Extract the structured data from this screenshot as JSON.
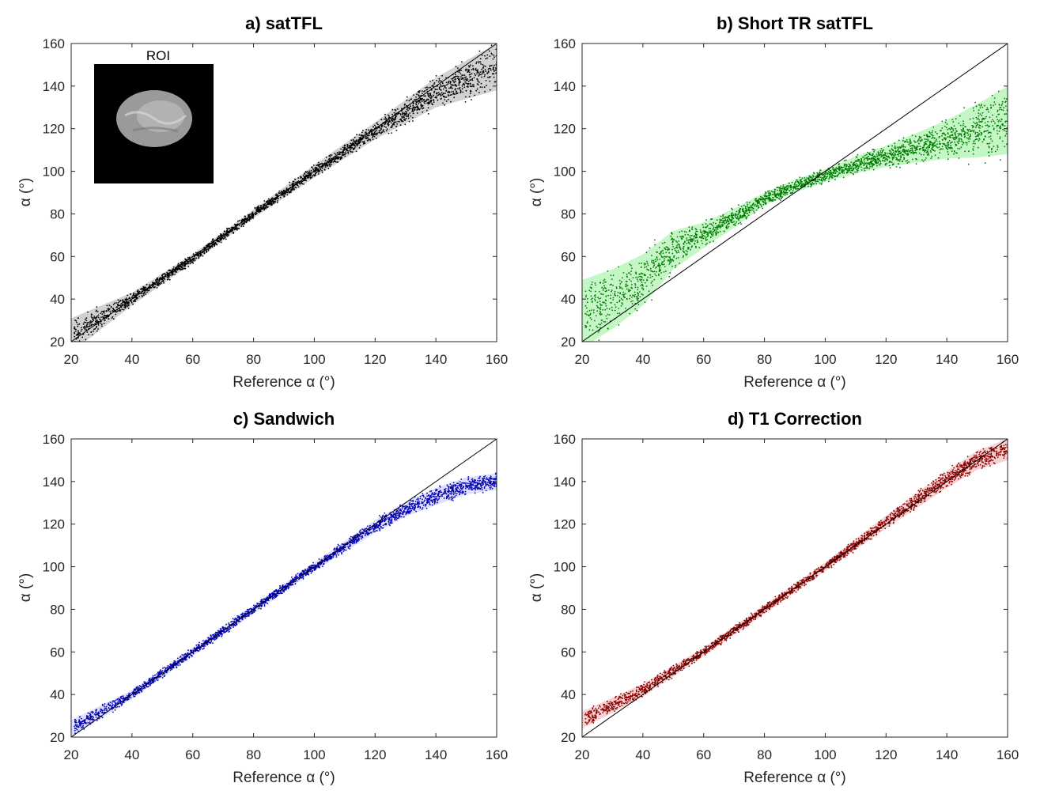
{
  "chart_data": [
    {
      "type": "scatter",
      "title": "a) satTFL",
      "xlabel": "Reference α (°)",
      "ylabel": "α (°)",
      "xlim": [
        20,
        160
      ],
      "ylim": [
        20,
        160
      ],
      "xticks": [
        20,
        40,
        60,
        80,
        100,
        120,
        140,
        160
      ],
      "yticks": [
        20,
        40,
        60,
        80,
        100,
        120,
        140,
        160
      ],
      "color": "#000000",
      "band_color": "#b3b3b3",
      "identity_line": true,
      "inset_label": "ROI",
      "trend": [
        [
          20,
          23
        ],
        [
          40,
          40
        ],
        [
          60,
          59
        ],
        [
          80,
          80
        ],
        [
          100,
          100
        ],
        [
          120,
          119
        ],
        [
          140,
          137
        ],
        [
          160,
          149
        ]
      ],
      "band_halfwidth": [
        [
          20,
          8
        ],
        [
          40,
          3
        ],
        [
          60,
          2
        ],
        [
          80,
          2
        ],
        [
          100,
          3
        ],
        [
          120,
          4
        ],
        [
          140,
          7
        ],
        [
          160,
          11
        ]
      ]
    },
    {
      "type": "scatter",
      "title": "b) Short TR satTFL",
      "xlabel": "Reference α (°)",
      "ylabel": "α (°)",
      "xlim": [
        20,
        160
      ],
      "ylim": [
        20,
        160
      ],
      "xticks": [
        20,
        40,
        60,
        80,
        100,
        120,
        140,
        160
      ],
      "yticks": [
        20,
        40,
        60,
        80,
        100,
        120,
        140,
        160
      ],
      "color": "#007a00",
      "band_color": "#9ff0a0",
      "identity_line": true,
      "trend": [
        [
          20,
          33
        ],
        [
          30,
          40
        ],
        [
          40,
          49
        ],
        [
          50,
          63
        ],
        [
          60,
          70
        ],
        [
          70,
          78
        ],
        [
          80,
          87
        ],
        [
          90,
          93
        ],
        [
          100,
          98
        ],
        [
          110,
          103
        ],
        [
          120,
          107
        ],
        [
          130,
          111
        ],
        [
          140,
          115
        ],
        [
          150,
          119
        ],
        [
          160,
          124
        ]
      ],
      "band_halfwidth": [
        [
          20,
          16
        ],
        [
          40,
          12
        ],
        [
          60,
          6
        ],
        [
          80,
          3
        ],
        [
          100,
          3
        ],
        [
          120,
          5
        ],
        [
          140,
          9
        ],
        [
          160,
          16
        ]
      ]
    },
    {
      "type": "scatter",
      "title": "c) Sandwich",
      "xlabel": "Reference α (°)",
      "ylabel": "α (°)",
      "xlim": [
        20,
        160
      ],
      "ylim": [
        20,
        160
      ],
      "xticks": [
        20,
        40,
        60,
        80,
        100,
        120,
        140,
        160
      ],
      "yticks": [
        20,
        40,
        60,
        80,
        100,
        120,
        140,
        160
      ],
      "color": "#0000b4",
      "band_color": "#c8c8ff",
      "identity_line": true,
      "trend": [
        [
          20,
          24
        ],
        [
          40,
          40
        ],
        [
          60,
          60
        ],
        [
          80,
          80
        ],
        [
          100,
          100
        ],
        [
          120,
          119
        ],
        [
          130,
          127
        ],
        [
          140,
          133
        ],
        [
          150,
          138
        ],
        [
          160,
          140
        ]
      ],
      "band_halfwidth": [
        [
          20,
          4
        ],
        [
          40,
          2
        ],
        [
          60,
          2
        ],
        [
          80,
          2
        ],
        [
          100,
          2
        ],
        [
          120,
          3
        ],
        [
          140,
          4
        ],
        [
          160,
          4
        ]
      ]
    },
    {
      "type": "scatter",
      "title": "d) T1 Correction",
      "xlabel": "Reference α (°)",
      "ylabel": "α (°)",
      "xlim": [
        20,
        160
      ],
      "ylim": [
        20,
        160
      ],
      "xticks": [
        20,
        40,
        60,
        80,
        100,
        120,
        140,
        160
      ],
      "yticks": [
        20,
        40,
        60,
        80,
        100,
        120,
        140,
        160
      ],
      "color": "#8b0000",
      "band_color": "#f4b4b4",
      "identity_line": true,
      "trend": [
        [
          20,
          28
        ],
        [
          40,
          42
        ],
        [
          60,
          60
        ],
        [
          80,
          80
        ],
        [
          100,
          100
        ],
        [
          120,
          121
        ],
        [
          140,
          141
        ],
        [
          150,
          150
        ],
        [
          160,
          155
        ]
      ],
      "band_halfwidth": [
        [
          20,
          4
        ],
        [
          40,
          3
        ],
        [
          60,
          2
        ],
        [
          80,
          2
        ],
        [
          100,
          2
        ],
        [
          120,
          3
        ],
        [
          140,
          4
        ],
        [
          160,
          5
        ]
      ]
    }
  ]
}
